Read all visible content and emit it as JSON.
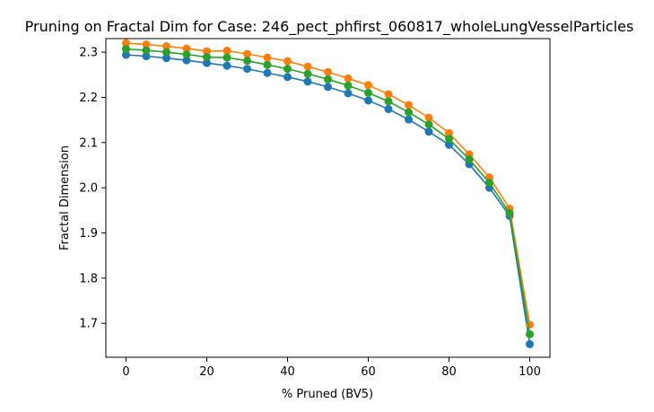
{
  "chart_data": {
    "type": "line",
    "title": "Pruning on Fractal Dim for Case: 246_pect_phfirst_060817_wholeLungVesselParticles",
    "xlabel": "% Pruned (BV5)",
    "ylabel": "Fractal Dimension",
    "xlim": [
      -5,
      105
    ],
    "ylim": [
      1.625,
      2.33
    ],
    "xticks": [
      "0",
      "20",
      "40",
      "60",
      "80",
      "100"
    ],
    "yticks": [
      "1.7",
      "1.8",
      "1.9",
      "2.0",
      "2.1",
      "2.2",
      "2.3"
    ],
    "grid": false,
    "legend": "none",
    "x": [
      0,
      5,
      10,
      15,
      20,
      25,
      30,
      35,
      40,
      45,
      50,
      55,
      60,
      65,
      70,
      75,
      80,
      85,
      90,
      95,
      100
    ],
    "series": [
      {
        "color": "#1f77b4",
        "values": [
          2.294,
          2.291,
          2.287,
          2.282,
          2.276,
          2.27,
          2.263,
          2.254,
          2.245,
          2.235,
          2.223,
          2.209,
          2.193,
          2.174,
          2.151,
          2.124,
          2.095,
          2.052,
          2.0,
          1.938,
          1.654
        ]
      },
      {
        "color": "#ff7f0e",
        "values": [
          2.32,
          2.317,
          2.313,
          2.308,
          2.302,
          2.303,
          2.296,
          2.288,
          2.28,
          2.268,
          2.256,
          2.242,
          2.227,
          2.207,
          2.183,
          2.155,
          2.121,
          2.074,
          2.023,
          1.954,
          1.697
        ]
      },
      {
        "color": "#2ca02c",
        "values": [
          2.307,
          2.304,
          2.3,
          2.295,
          2.289,
          2.288,
          2.281,
          2.272,
          2.263,
          2.252,
          2.24,
          2.226,
          2.21,
          2.191,
          2.167,
          2.14,
          2.108,
          2.063,
          2.011,
          1.944,
          1.676
        ]
      }
    ]
  }
}
